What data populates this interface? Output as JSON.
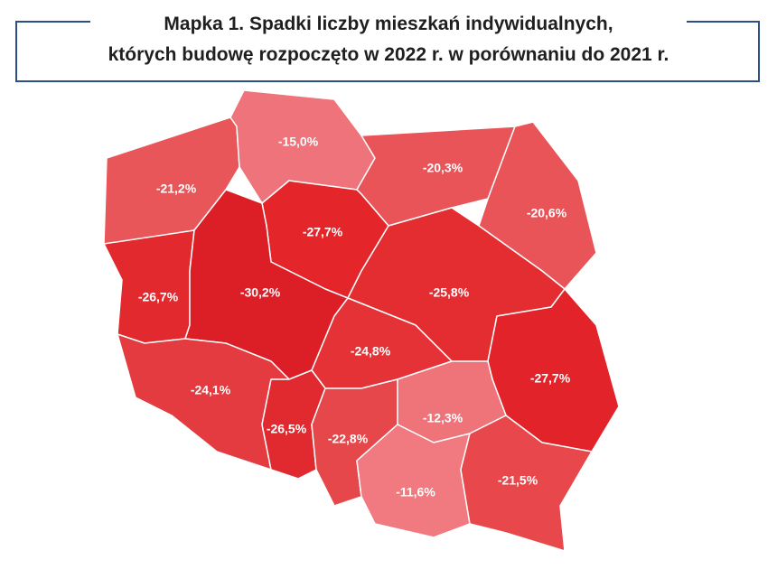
{
  "title": [
    "Mapka 1. Spadki liczby mieszkań indywidualnych,",
    "których budowę rozpoczęto w 2022 r.  w porównaniu do 2021 r."
  ],
  "regions": [
    {
      "label": "-21,2%",
      "color": "#e8565a"
    },
    {
      "label": "-15,0%",
      "color": "#ef737a"
    },
    {
      "label": "-20,3%",
      "color": "#e95458"
    },
    {
      "label": "-20,6%",
      "color": "#e95458"
    },
    {
      "label": "-27,7%",
      "color": "#e4262b"
    },
    {
      "label": "-26,7%",
      "color": "#e2292e"
    },
    {
      "label": "-30,2%",
      "color": "#dc1f26"
    },
    {
      "label": "-25,8%",
      "color": "#e42d31"
    },
    {
      "label": "-24,8%",
      "color": "#e53237"
    },
    {
      "label": "-27,7%",
      "color": "#e2232a"
    },
    {
      "label": "-24,1%",
      "color": "#e33b3f"
    },
    {
      "label": "-26,5%",
      "color": "#e02a2f"
    },
    {
      "label": "-22,8%",
      "color": "#e5474b"
    },
    {
      "label": "-12,3%",
      "color": "#ef747a"
    },
    {
      "label": "-11,6%",
      "color": "#f07a80"
    },
    {
      "label": "-21,5%",
      "color": "#e8474b"
    }
  ]
}
